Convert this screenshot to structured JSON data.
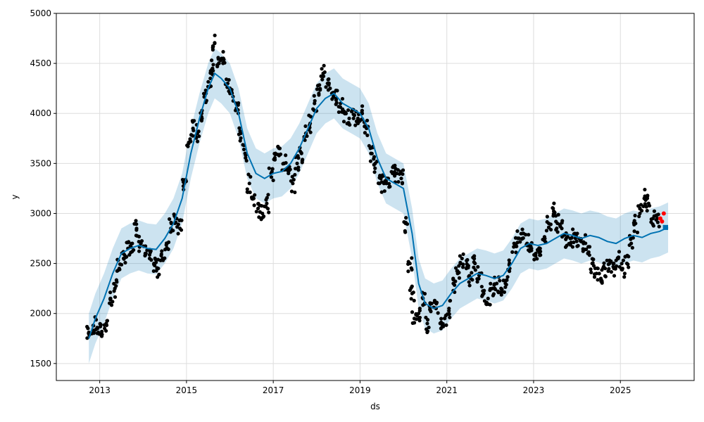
{
  "chart_data": {
    "type": "scatter",
    "title": "",
    "xlabel": "ds",
    "ylabel": "y",
    "xlim": [
      2012.0,
      2026.7
    ],
    "ylim": [
      1330,
      5000
    ],
    "grid": true,
    "x_ticks": [
      2013,
      2015,
      2017,
      2019,
      2021,
      2023,
      2025
    ],
    "x_tick_labels": [
      "2013",
      "2015",
      "2017",
      "2019",
      "2021",
      "2023",
      "2025"
    ],
    "y_ticks": [
      1500,
      2000,
      2500,
      3000,
      3500,
      4000,
      4500,
      5000
    ],
    "y_tick_labels": [
      "1500",
      "2000",
      "2500",
      "3000",
      "3500",
      "4000",
      "4500",
      "5000"
    ],
    "colors": {
      "observed": "#000000",
      "forecast_line": "#0072B2",
      "uncertainty_band": "#0072B2",
      "test_points": "#ff0000",
      "grid": "#dddddd"
    },
    "forecast": {
      "x": [
        2012.75,
        2012.9,
        2013.1,
        2013.3,
        2013.5,
        2013.7,
        2013.9,
        2014.1,
        2014.3,
        2014.5,
        2014.7,
        2014.9,
        2015.1,
        2015.3,
        2015.5,
        2015.65,
        2015.8,
        2016.0,
        2016.2,
        2016.4,
        2016.6,
        2016.8,
        2017.0,
        2017.2,
        2017.4,
        2017.6,
        2017.8,
        2018.0,
        2018.2,
        2018.4,
        2018.6,
        2018.8,
        2019.0,
        2019.2,
        2019.4,
        2019.6,
        2019.8,
        2020.0,
        2020.2,
        2020.35,
        2020.5,
        2020.7,
        2020.9,
        2021.1,
        2021.3,
        2021.5,
        2021.7,
        2021.9,
        2022.1,
        2022.3,
        2022.5,
        2022.7,
        2022.9,
        2023.1,
        2023.3,
        2023.5,
        2023.7,
        2023.9,
        2024.1,
        2024.3,
        2024.5,
        2024.7,
        2024.9,
        2025.1,
        2025.3,
        2025.5,
        2025.7,
        2025.9,
        2026.1
      ],
      "yhat": [
        1750,
        1950,
        2150,
        2400,
        2600,
        2650,
        2680,
        2650,
        2640,
        2750,
        2900,
        3150,
        3600,
        3950,
        4250,
        4400,
        4350,
        4250,
        4000,
        3600,
        3400,
        3350,
        3400,
        3420,
        3500,
        3650,
        3850,
        4050,
        4150,
        4200,
        4100,
        4050,
        4000,
        3850,
        3550,
        3350,
        3300,
        3250,
        2800,
        2300,
        2100,
        2050,
        2080,
        2200,
        2300,
        2350,
        2400,
        2380,
        2350,
        2380,
        2500,
        2650,
        2700,
        2680,
        2700,
        2750,
        2800,
        2780,
        2750,
        2780,
        2760,
        2720,
        2700,
        2750,
        2780,
        2760,
        2800,
        2820,
        2860
      ],
      "band_halfwidth": 250
    },
    "observed": {
      "x": [
        2012.75,
        2012.85,
        2012.95,
        2013.05,
        2013.15,
        2013.25,
        2013.35,
        2013.45,
        2013.55,
        2013.65,
        2013.75,
        2013.85,
        2013.95,
        2014.05,
        2014.15,
        2014.25,
        2014.35,
        2014.45,
        2014.55,
        2014.65,
        2014.75,
        2014.85,
        2014.95,
        2015.05,
        2015.15,
        2015.25,
        2015.35,
        2015.45,
        2015.55,
        2015.6,
        2015.65,
        2015.75,
        2015.85,
        2015.95,
        2016.05,
        2016.15,
        2016.25,
        2016.35,
        2016.45,
        2016.55,
        2016.65,
        2016.75,
        2016.85,
        2016.95,
        2017.05,
        2017.15,
        2017.25,
        2017.35,
        2017.45,
        2017.55,
        2017.65,
        2017.75,
        2017.85,
        2017.95,
        2018.05,
        2018.15,
        2018.25,
        2018.35,
        2018.45,
        2018.55,
        2018.65,
        2018.75,
        2018.85,
        2018.95,
        2019.05,
        2019.15,
        2019.25,
        2019.35,
        2019.45,
        2019.55,
        2019.65,
        2019.75,
        2019.85,
        2019.95,
        2020.05,
        2020.15,
        2020.2,
        2020.25,
        2020.35,
        2020.45,
        2020.55,
        2020.65,
        2020.75,
        2020.85,
        2020.95,
        2021.05,
        2021.15,
        2021.25,
        2021.35,
        2021.45,
        2021.55,
        2021.65,
        2021.75,
        2021.85,
        2021.95,
        2022.05,
        2022.15,
        2022.25,
        2022.35,
        2022.45,
        2022.55,
        2022.65,
        2022.75,
        2022.85,
        2022.95,
        2023.05,
        2023.15,
        2023.25,
        2023.35,
        2023.45,
        2023.55,
        2023.65,
        2023.75,
        2023.85,
        2023.95,
        2024.05,
        2024.15,
        2024.25,
        2024.35,
        2024.45,
        2024.55,
        2024.65,
        2024.75,
        2024.85,
        2024.95,
        2025.05,
        2025.15,
        2025.25,
        2025.35,
        2025.45,
        2025.55,
        2025.65,
        2025.75,
        2025.85
      ],
      "y": [
        1800,
        1880,
        1850,
        1820,
        1900,
        2150,
        2250,
        2450,
        2550,
        2650,
        2700,
        2850,
        2700,
        2600,
        2550,
        2500,
        2450,
        2550,
        2700,
        2900,
        2950,
        2850,
        3300,
        3700,
        3850,
        3800,
        4000,
        4200,
        4350,
        4450,
        4700,
        4500,
        4550,
        4300,
        4200,
        4050,
        3800,
        3600,
        3300,
        3150,
        3050,
        3000,
        3100,
        3400,
        3600,
        3650,
        3500,
        3400,
        3300,
        3500,
        3600,
        3800,
        3900,
        4100,
        4200,
        4400,
        4300,
        4200,
        4150,
        4100,
        4000,
        3950,
        3950,
        3950,
        4000,
        3850,
        3600,
        3500,
        3300,
        3300,
        3350,
        3400,
        3400,
        3350,
        2900,
        2500,
        2200,
        1950,
        2000,
        2150,
        1900,
        2100,
        2050,
        1900,
        1950,
        2050,
        2300,
        2400,
        2550,
        2450,
        2350,
        2500,
        2400,
        2200,
        2150,
        2250,
        2300,
        2250,
        2300,
        2450,
        2700,
        2750,
        2800,
        2700,
        2650,
        2600,
        2650,
        2750,
        2900,
        3050,
        2900,
        2850,
        2750,
        2750,
        2800,
        2750,
        2700,
        2600,
        2500,
        2400,
        2350,
        2450,
        2500,
        2450,
        2550,
        2450,
        2500,
        2700,
        2900,
        3000,
        3150,
        3100,
        2950,
        2950
      ],
      "spread": 90
    },
    "test_points": {
      "x": [
        2025.92,
        2025.96,
        2026.0
      ],
      "y": [
        2950,
        2920,
        3000
      ]
    }
  }
}
